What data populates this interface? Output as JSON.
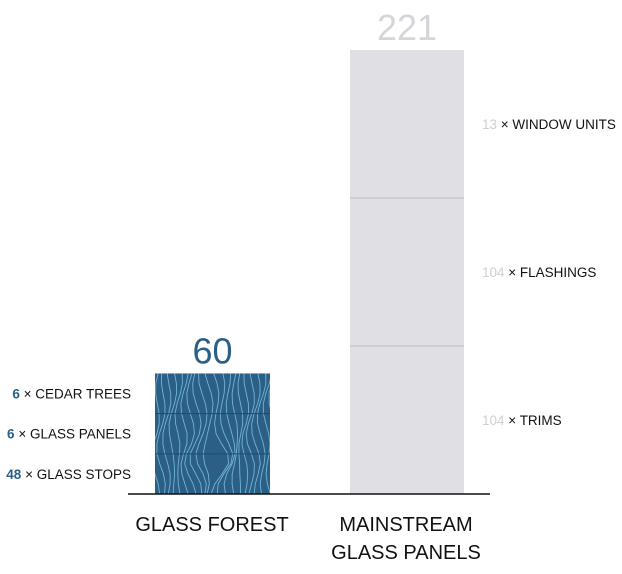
{
  "chart_data": {
    "type": "bar",
    "stacked": true,
    "categories": [
      "GLASS FOREST",
      "MAINSTREAM GLASS PANELS"
    ],
    "bars": [
      {
        "category_lines": [
          "GLASS FOREST"
        ],
        "total": 60,
        "fill_color": "#2c5f86",
        "pattern": "wood-grain",
        "pattern_color": "#7ec3e6",
        "label_side": "left",
        "count_color": "#2c5f86",
        "segments": [
          {
            "count": "48",
            "name": "GLASS STOPS",
            "value": 20
          },
          {
            "count": "6",
            "name": "GLASS PANELS",
            "value": 20
          },
          {
            "count": "6",
            "name": "CEDAR TREES",
            "value": 20
          }
        ]
      },
      {
        "category_lines": [
          "MAINSTREAM",
          "GLASS PANELS"
        ],
        "total": 221,
        "fill_color": "#e0e0e4",
        "pattern": "none",
        "label_side": "right",
        "count_color": "#cfcfd4",
        "segments": [
          {
            "count": "104",
            "name": "TRIMS",
            "value": 73.67
          },
          {
            "count": "104",
            "name": "FLASHINGS",
            "value": 73.67
          },
          {
            "count": "13",
            "name": "WINDOW UNITS",
            "value": 73.66
          }
        ]
      }
    ],
    "multiply_sign": "×",
    "colors": {
      "glass_forest_total": "#2c5f86",
      "mainstream_total": "#d6d6da",
      "text": "#111111",
      "axis": "#111111",
      "divider_dark": "#1f4a6b",
      "divider_light": "#bdbdc2"
    },
    "axis": {
      "ylim": [
        0,
        221
      ]
    },
    "grid": false,
    "legend": "none"
  }
}
